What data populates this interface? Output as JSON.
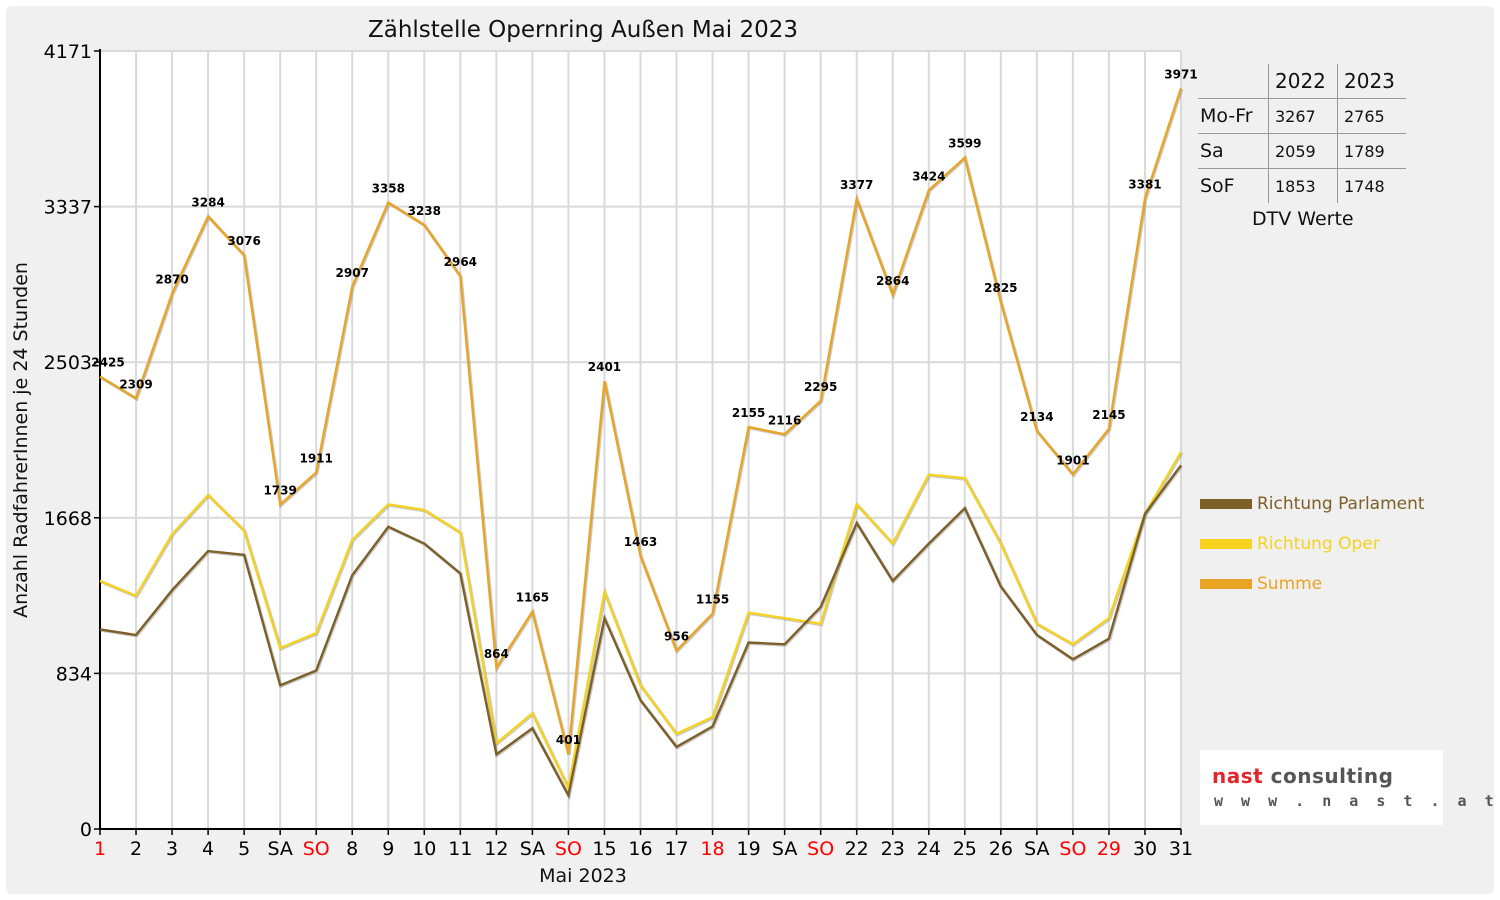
{
  "chart_data": {
    "type": "line",
    "title": "Zählstelle Opernring Außen Mai 2023",
    "xlabel": "Mai 2023",
    "ylabel": "Anzahl RadfahrerInnen je 24 Stunden",
    "ylim": [
      0,
      4171
    ],
    "yticks": [
      "0",
      "834",
      "1668",
      "2503",
      "3337",
      "4171"
    ],
    "grid": true,
    "legend_position": "right",
    "categories": [
      "1",
      "2",
      "3",
      "4",
      "5",
      "SA",
      "SO",
      "8",
      "9",
      "10",
      "11",
      "12",
      "SA",
      "SO",
      "15",
      "16",
      "17",
      "18",
      "19",
      "SA",
      "SO",
      "22",
      "23",
      "24",
      "25",
      "26",
      "SA",
      "SO",
      "29",
      "30",
      "31"
    ],
    "red_categories": [
      0,
      6,
      13,
      17,
      20,
      27,
      28
    ],
    "series": [
      {
        "name": "Richtung Parlament",
        "color": "#7d5f28",
        "values": [
          1070,
          1040,
          1280,
          1490,
          1470,
          770,
          850,
          1360,
          1620,
          1530,
          1370,
          400,
          540,
          180,
          1130,
          690,
          440,
          550,
          1000,
          990,
          1190,
          1640,
          1330,
          1530,
          1720,
          1300,
          1040,
          910,
          1020,
          1690,
          1950
        ]
      },
      {
        "name": "Richtung Oper",
        "color": "#f5d21e",
        "values": [
          1330,
          1250,
          1580,
          1790,
          1600,
          970,
          1050,
          1550,
          1740,
          1710,
          1590,
          460,
          620,
          220,
          1270,
          770,
          510,
          600,
          1160,
          1130,
          1100,
          1740,
          1530,
          1900,
          1880,
          1530,
          1100,
          990,
          1130,
          1690,
          2020
        ]
      },
      {
        "name": "Summe",
        "color": "#eaa423",
        "values": [
          2425,
          2309,
          2870,
          3284,
          3076,
          1739,
          1911,
          2907,
          3358,
          3238,
          2964,
          864,
          1165,
          401,
          2401,
          1463,
          956,
          1155,
          2155,
          2116,
          2295,
          3377,
          2864,
          3424,
          3599,
          2825,
          2134,
          1901,
          2145,
          3381,
          3971
        ]
      }
    ]
  },
  "dtv": {
    "headers": [
      "2022",
      "2023"
    ],
    "rows": [
      {
        "label": "Mo-Fr",
        "v2022": "3267",
        "v2023": "2765"
      },
      {
        "label": "Sa",
        "v2022": "2059",
        "v2023": "1789"
      },
      {
        "label": "SoF",
        "v2022": "1853",
        "v2023": "1748"
      }
    ],
    "caption": "DTV Werte"
  },
  "logo": {
    "brand_part1": "nast",
    "brand_part2": " consulting",
    "url": "w w w . n a s t . a t"
  },
  "colors": {
    "axis": "#000000",
    "grid": "#d9d9d9",
    "weekend_red": "#ff0000",
    "background": "#f0f0f0"
  }
}
